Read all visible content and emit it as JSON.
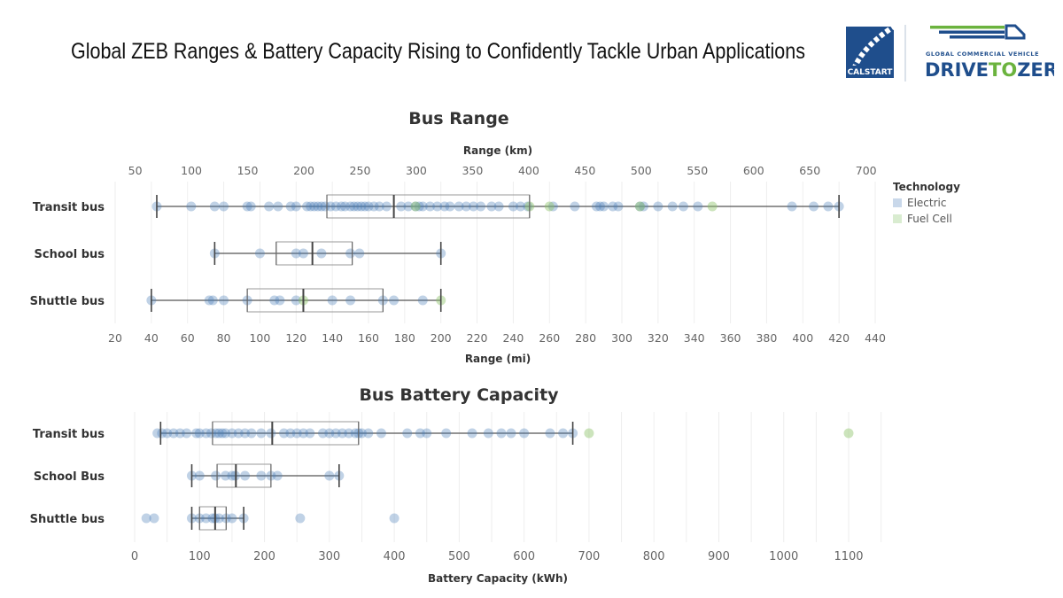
{
  "header": {
    "title": "Global ZEB Ranges & Battery Capacity Rising to Confidently Tackle Urban Applications",
    "logos": {
      "calstart": "CALSTART",
      "d2z_tagline": "GLOBAL COMMERCIAL VEHICLE",
      "d2z_name_a": "DRIVE",
      "d2z_name_b": "TO",
      "d2z_name_c": "ZERO",
      "d2z_tm": "™"
    }
  },
  "legend": {
    "title": "Technology",
    "items": [
      {
        "label": "Electric",
        "color": "#c9d8ea"
      },
      {
        "label": "Fuel Cell",
        "color": "#d9ecd0"
      }
    ]
  },
  "colors": {
    "electric_point": "#4a7fb8",
    "fuelcell_point": "#8dc46a",
    "fuelcell_dark": "#3e8a55",
    "box_stroke": "#555555",
    "grid": "#eeeeee",
    "axis_text": "#666666"
  },
  "chart_data": [
    {
      "type": "box-scatter",
      "title": "Bus Range",
      "xlabel_top": "Range (km)",
      "xlabel_bottom": "Range (mi)",
      "xlim_mi": [
        20,
        440
      ],
      "ticks_bottom_mi": [
        20,
        40,
        60,
        80,
        100,
        120,
        140,
        160,
        180,
        200,
        220,
        240,
        260,
        280,
        300,
        320,
        340,
        360,
        380,
        400,
        420,
        440
      ],
      "ticks_top_km": [
        50,
        100,
        150,
        200,
        250,
        300,
        350,
        400,
        450,
        500,
        550,
        600,
        650,
        700
      ],
      "grid": true,
      "legend_position": "right",
      "categories": [
        "Transit bus",
        "School bus",
        "Shuttle bus"
      ],
      "boxes": [
        {
          "category": "Transit bus",
          "min": 43,
          "q1": 137,
          "median": 174,
          "q3": 249,
          "max": 420
        },
        {
          "category": "School bus",
          "min": 75,
          "q1": 109,
          "median": 129,
          "q3": 151,
          "max": 200
        },
        {
          "category": "Shuttle bus",
          "min": 40,
          "q1": 93,
          "median": 124,
          "q3": 168,
          "max": 200
        }
      ],
      "points": {
        "Transit bus": {
          "Electric": [
            43,
            62,
            75,
            80,
            93,
            95,
            105,
            110,
            117,
            120,
            126,
            128,
            130,
            132,
            134,
            136,
            139,
            142,
            145,
            147,
            150,
            152,
            154,
            156,
            158,
            160,
            163,
            166,
            170,
            178,
            182,
            186,
            188,
            190,
            194,
            198,
            202,
            205,
            210,
            214,
            218,
            222,
            228,
            232,
            240,
            244,
            248,
            262,
            274,
            286,
            288,
            290,
            295,
            298,
            310,
            312,
            320,
            328,
            334,
            342,
            394,
            406,
            414,
            420
          ],
          "Fuel Cell": [
            186,
            249,
            260,
            310,
            350
          ]
        },
        "School bus": {
          "Electric": [
            75,
            100,
            120,
            124,
            134,
            150,
            155,
            200
          ],
          "Fuel Cell": []
        },
        "Shuttle bus": {
          "Electric": [
            40,
            72,
            74,
            80,
            93,
            108,
            111,
            120,
            140,
            150,
            168,
            174,
            190
          ],
          "Fuel Cell": [
            124,
            200
          ]
        }
      }
    },
    {
      "type": "box-scatter",
      "title": "Bus Battery Capacity",
      "xlabel": "Battery Capacity (kWh)",
      "xlim": [
        0,
        1150
      ],
      "ticks": [
        0,
        100,
        200,
        300,
        400,
        500,
        600,
        700,
        800,
        900,
        1000,
        1100
      ],
      "grid": true,
      "categories": [
        "Transit bus",
        "School Bus",
        "Shuttle bus"
      ],
      "boxes": [
        {
          "category": "Transit bus",
          "min": 40,
          "q1": 120,
          "median": 212,
          "q3": 345,
          "max": 675
        },
        {
          "category": "School Bus",
          "min": 88,
          "q1": 127,
          "median": 156,
          "q3": 210,
          "max": 315
        },
        {
          "category": "Shuttle bus",
          "min": 88,
          "q1": 100,
          "median": 124,
          "q3": 141,
          "max": 168
        }
      ],
      "points": {
        "Transit bus": {
          "Electric": [
            35,
            42,
            50,
            60,
            70,
            80,
            95,
            100,
            110,
            118,
            125,
            130,
            135,
            140,
            150,
            160,
            170,
            180,
            195,
            210,
            230,
            240,
            250,
            260,
            270,
            290,
            300,
            310,
            320,
            330,
            340,
            345,
            350,
            360,
            380,
            420,
            440,
            450,
            480,
            520,
            545,
            565,
            580,
            600,
            640,
            660,
            675
          ],
          "Fuel Cell": [
            700,
            1100
          ]
        },
        "School Bus": {
          "Electric": [
            88,
            100,
            125,
            140,
            150,
            155,
            170,
            195,
            210,
            220,
            300,
            315
          ],
          "Fuel Cell": []
        },
        "Shuttle bus": {
          "Electric": [
            18,
            30,
            88,
            100,
            110,
            120,
            124,
            130,
            141,
            150,
            168,
            255,
            400
          ],
          "Fuel Cell": []
        }
      }
    }
  ]
}
